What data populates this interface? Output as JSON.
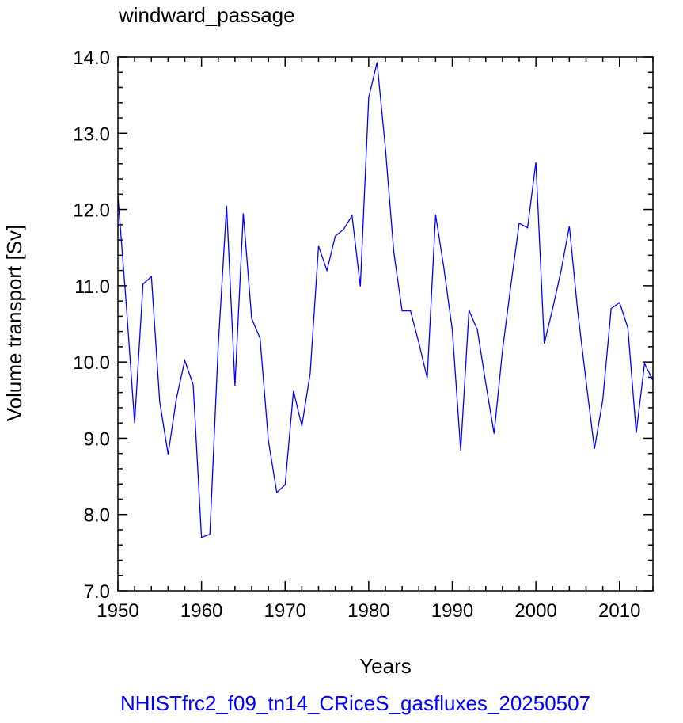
{
  "chart_data": {
    "type": "line",
    "title": "windward_passage",
    "xlabel": "Years",
    "ylabel": "Volume transport [Sv]",
    "caption": "NHISTfrc2_f09_tn14_CRiceS_gasfluxes_20250507",
    "xlim": [
      1950,
      2014
    ],
    "ylim": [
      7.0,
      14.0
    ],
    "x_ticks": [
      "1950",
      "1960",
      "1970",
      "1980",
      "1990",
      "2000",
      "2010"
    ],
    "y_ticks": [
      "7.0",
      "8.0",
      "9.0",
      "10.0",
      "11.0",
      "12.0",
      "13.0",
      "14.0"
    ],
    "line_color": "#0000ff",
    "series": [
      {
        "x": [
          1950,
          1951,
          1952,
          1953,
          1954,
          1955,
          1956,
          1957,
          1958,
          1959,
          1960,
          1961,
          1962,
          1963,
          1964,
          1965,
          1966,
          1967,
          1968,
          1969,
          1970,
          1971,
          1972,
          1973,
          1974,
          1975,
          1976,
          1977,
          1978,
          1979,
          1980,
          1981,
          1982,
          1983,
          1984,
          1985,
          1986,
          1987,
          1988,
          1989,
          1990,
          1991,
          1992,
          1993,
          1994,
          1995,
          1996,
          1997,
          1998,
          1999,
          2000,
          2001,
          2002,
          2003,
          2004,
          2005,
          2006,
          2007,
          2008,
          2009,
          2010,
          2011,
          2012,
          2013,
          2014
        ],
        "values": [
          12.18,
          10.75,
          9.2,
          11.02,
          11.12,
          9.48,
          8.79,
          9.52,
          10.02,
          9.7,
          7.7,
          7.74,
          10.22,
          12.05,
          9.69,
          11.95,
          10.57,
          10.31,
          8.97,
          8.29,
          8.39,
          9.62,
          9.16,
          9.85,
          11.52,
          11.2,
          11.65,
          11.74,
          11.92,
          10.99,
          13.47,
          13.93,
          12.8,
          11.44,
          10.67,
          10.67,
          10.25,
          9.79,
          11.93,
          11.23,
          10.42,
          8.84,
          10.68,
          10.42,
          9.72,
          9.06,
          10.15,
          11.0,
          11.82,
          11.76,
          12.62,
          10.24,
          10.7,
          11.19,
          11.78,
          10.67,
          9.75,
          8.86,
          9.5,
          10.7,
          10.78,
          10.45,
          9.07,
          9.98,
          9.76
        ]
      }
    ]
  }
}
